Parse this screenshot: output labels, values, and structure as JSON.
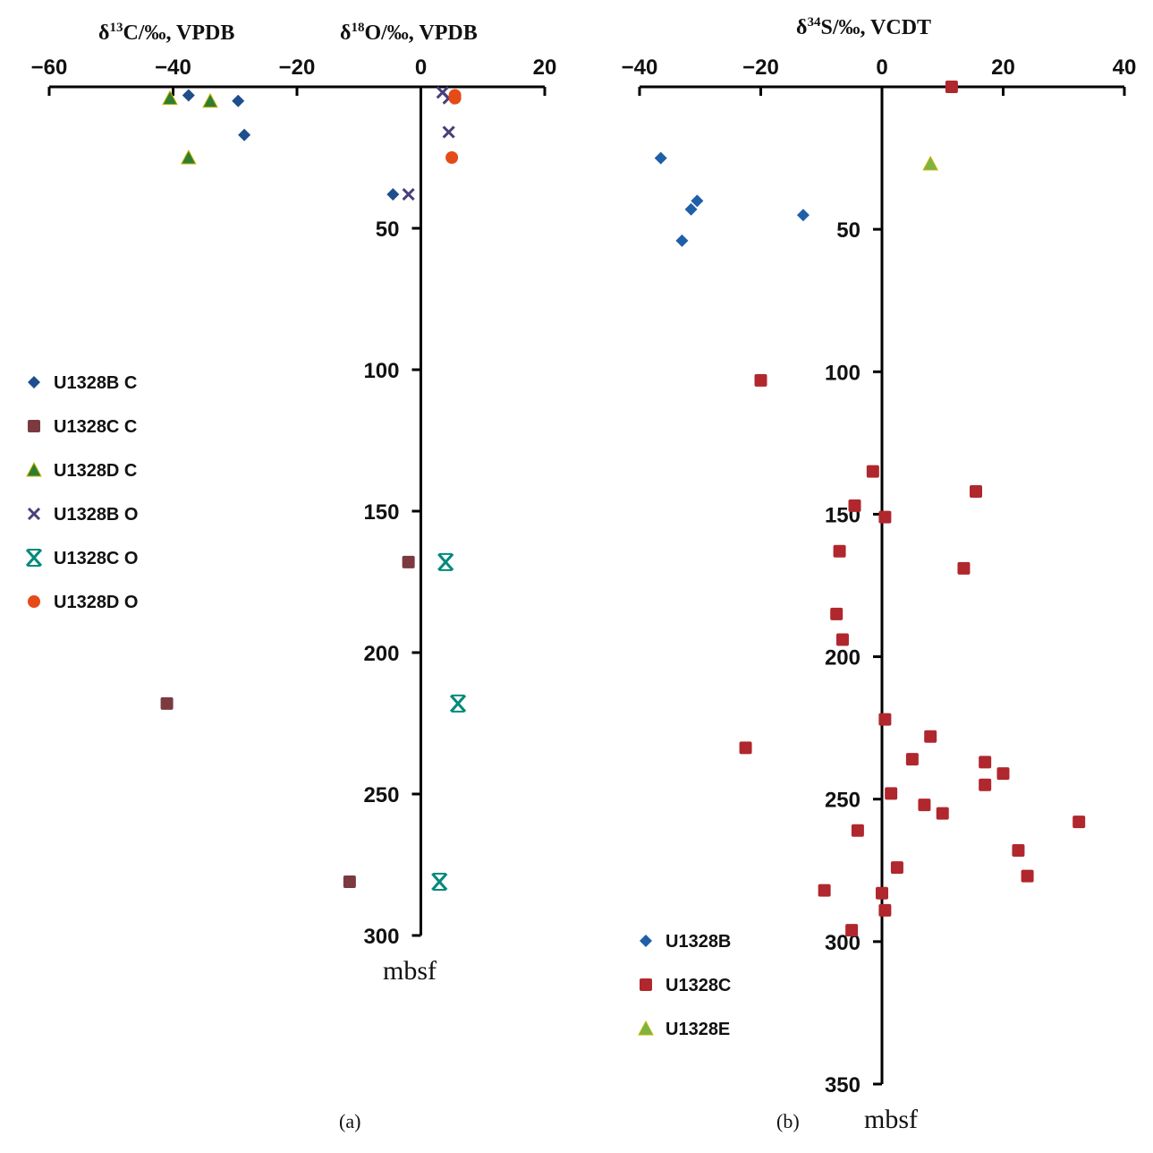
{
  "chart_data": [
    {
      "panel": "(a)",
      "type": "scatter",
      "x_axes": [
        {
          "label": "δ13C/‰, VPDB",
          "label_main": "δ",
          "label_sup": "13",
          "label_rest": "C/‰, VPDB",
          "range": [
            -60,
            20
          ]
        },
        {
          "label": "δ18O/‰, VPDB",
          "label_main": "δ",
          "label_sup": "18",
          "label_rest": "O/‰, VPDB",
          "range": [
            -60,
            20
          ]
        }
      ],
      "x_ticks": [
        -60,
        -40,
        -20,
        0,
        20
      ],
      "x_tick_labels": [
        "−60",
        "−40",
        "−20",
        "0",
        "20"
      ],
      "ylabel": "mbsf",
      "y_range": [
        0,
        300
      ],
      "y_inverted": true,
      "y_ticks": [
        50,
        100,
        150,
        200,
        250,
        300
      ],
      "y_tick_labels": [
        "50",
        "100",
        "150",
        "200",
        "250",
        "300"
      ],
      "legend_position": "left",
      "series": [
        {
          "name": "U1328B C",
          "marker": "diamond",
          "color": "#1f4e8c",
          "points": [
            [
              -37.5,
              3
            ],
            [
              -29.5,
              5
            ],
            [
              -28.5,
              17
            ],
            [
              -4.5,
              38
            ]
          ]
        },
        {
          "name": "U1328C C",
          "marker": "square",
          "color": "#7b3a3f",
          "points": [
            [
              -2,
              168
            ],
            [
              -41,
              218
            ],
            [
              -11.5,
              281
            ]
          ]
        },
        {
          "name": "U1328D C",
          "marker": "triangle",
          "color": "#2e7d32",
          "points": [
            [
              -40.5,
              4
            ],
            [
              -34,
              5
            ],
            [
              -37.5,
              25
            ]
          ]
        },
        {
          "name": "U1328B O",
          "marker": "x",
          "color": "#4a3f7a",
          "points": [
            [
              3.5,
              2
            ],
            [
              4.5,
              4
            ],
            [
              4.5,
              16
            ],
            [
              -2,
              38
            ]
          ]
        },
        {
          "name": "U1328C O",
          "marker": "star",
          "color": "#00897b",
          "points": [
            [
              4,
              168
            ],
            [
              6,
              218
            ],
            [
              3,
              281
            ]
          ]
        },
        {
          "name": "U1328D O",
          "marker": "circle",
          "color": "#e64a19",
          "points": [
            [
              5.5,
              3
            ],
            [
              5.5,
              4
            ],
            [
              5,
              25
            ]
          ]
        }
      ]
    },
    {
      "panel": "(b)",
      "type": "scatter",
      "x_axes": [
        {
          "label": "δ34S/‰, VCDT",
          "label_main": "δ",
          "label_sup": "34",
          "label_rest": "S/‰, VCDT",
          "range": [
            -40,
            40
          ]
        }
      ],
      "x_ticks": [
        -40,
        -20,
        0,
        20,
        40
      ],
      "x_tick_labels": [
        "−40",
        "−20",
        "0",
        "20",
        "40"
      ],
      "ylabel": "mbsf",
      "y_range": [
        0,
        350
      ],
      "y_inverted": true,
      "y_ticks": [
        50,
        100,
        150,
        200,
        250,
        300,
        350
      ],
      "y_tick_labels": [
        "50",
        "100",
        "150",
        "200",
        "250",
        "300",
        "350"
      ],
      "legend_position": "bottom-left",
      "series": [
        {
          "name": "U1328B",
          "marker": "diamond",
          "color": "#1f5fa8",
          "points": [
            [
              -36.5,
              25
            ],
            [
              -30.5,
              40
            ],
            [
              -31.5,
              43
            ],
            [
              -13,
              45
            ],
            [
              -33,
              54
            ]
          ]
        },
        {
          "name": "U1328C",
          "marker": "square",
          "color": "#b0272d",
          "points": [
            [
              11.5,
              0
            ],
            [
              -20,
              103
            ],
            [
              -1.5,
              135
            ],
            [
              15.5,
              142
            ],
            [
              -4.5,
              147
            ],
            [
              0.5,
              151
            ],
            [
              -7,
              163
            ],
            [
              13.5,
              169
            ],
            [
              -7.5,
              185
            ],
            [
              -6.5,
              194
            ],
            [
              0.5,
              222
            ],
            [
              8,
              228
            ],
            [
              -22.5,
              232
            ],
            [
              5,
              236
            ],
            [
              17,
              237
            ],
            [
              20,
              241
            ],
            [
              17,
              245
            ],
            [
              1.5,
              248
            ],
            [
              7,
              252
            ],
            [
              10,
              255
            ],
            [
              32.5,
              258
            ],
            [
              -4,
              261
            ],
            [
              22.5,
              268
            ],
            [
              2.5,
              274
            ],
            [
              24,
              277
            ],
            [
              -9.5,
              282
            ],
            [
              0,
              283
            ],
            [
              0.5,
              289
            ],
            [
              -5,
              296
            ]
          ]
        },
        {
          "name": "U1328E",
          "marker": "triangle",
          "color": "#7cb342",
          "points": [
            [
              8,
              27
            ]
          ]
        }
      ]
    }
  ]
}
